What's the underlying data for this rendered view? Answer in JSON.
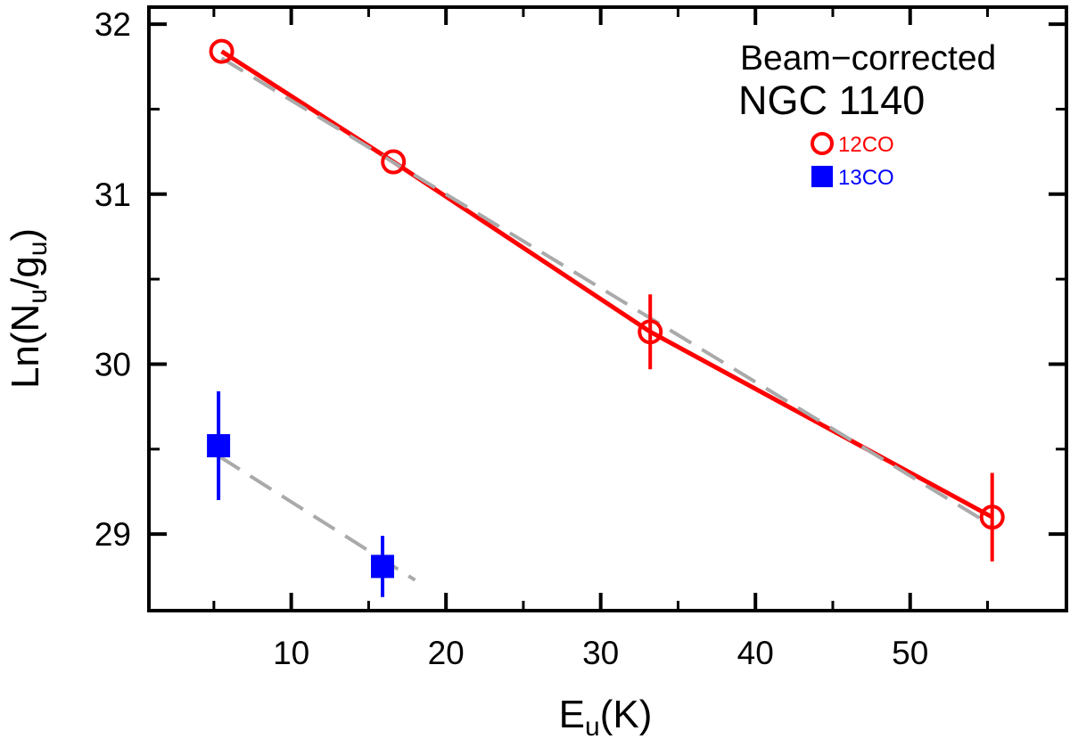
{
  "chart_data": {
    "type": "scatter",
    "title": "",
    "xlabel": {
      "base": "E",
      "sub": "u",
      "suffix": "(K)"
    },
    "ylabel": {
      "prefix": "Ln(N",
      "sub1": "u",
      "mid": "/g",
      "sub2": "u",
      "suffix": ")"
    },
    "xlim": [
      0.8,
      60.1
    ],
    "ylim": [
      28.55,
      32.1
    ],
    "xticks": [
      10,
      20,
      30,
      40,
      50
    ],
    "xminor": [
      5,
      15,
      25,
      35,
      45,
      55
    ],
    "yticks": [
      29,
      30,
      31,
      32
    ],
    "yminor": [
      29.5,
      30.5,
      31.5
    ],
    "annotation": {
      "line1": "Beam−corrected",
      "line2": "NGC 1140"
    },
    "series": [
      {
        "name": "12CO",
        "marker": "open-circle",
        "color": "#ff0000",
        "x": [
          5.5,
          16.6,
          33.2,
          55.3
        ],
        "y": [
          31.84,
          31.19,
          30.19,
          29.1
        ],
        "yerr": [
          0.0,
          0.0,
          0.22,
          0.26
        ]
      },
      {
        "name": "13CO",
        "marker": "filled-square",
        "color": "#0000ff",
        "x": [
          5.3,
          15.9
        ],
        "y": [
          29.52,
          28.81
        ],
        "yerr": [
          0.32,
          0.18
        ]
      }
    ],
    "fits": [
      {
        "series": "12CO",
        "style": "solid",
        "color": "#ff0000",
        "x": [
          5.5,
          16.6,
          33.2,
          55.3
        ],
        "y": [
          31.84,
          31.19,
          30.19,
          29.1
        ]
      },
      {
        "series": "12CO",
        "style": "dashed",
        "color": "#aaaaaa",
        "x": [
          5.5,
          55.3
        ],
        "y": [
          31.8,
          29.05
        ]
      },
      {
        "series": "13CO",
        "style": "dashed",
        "color": "#aaaaaa",
        "x": [
          5.3,
          18.0
        ],
        "y": [
          29.46,
          28.73
        ]
      }
    ]
  }
}
